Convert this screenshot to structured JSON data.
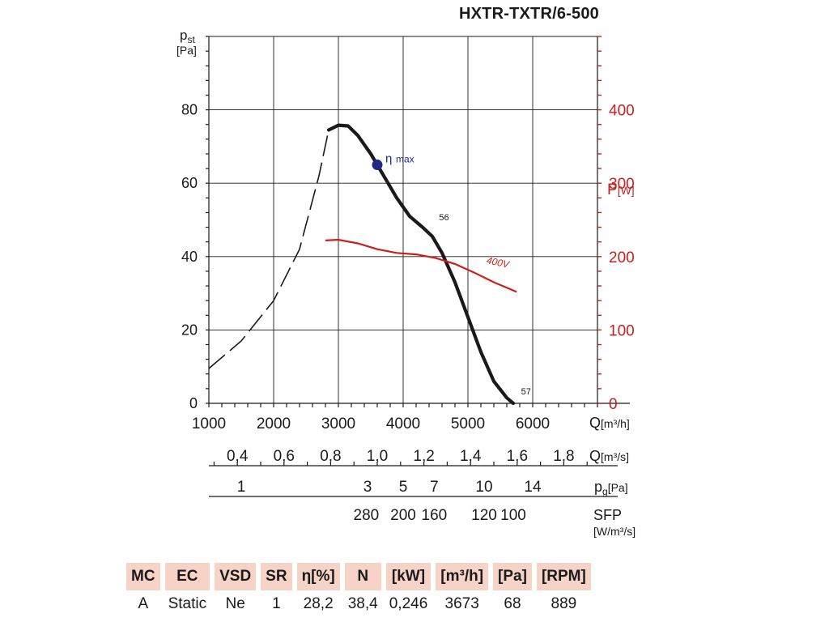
{
  "title": "HXTR-TXTR/6-500",
  "chart_data": {
    "type": "line",
    "x_axis": {
      "label_main": "Q",
      "label_unit": "[m³/h]",
      "range": [
        1000,
        7000
      ],
      "ticks": [
        1000,
        2000,
        3000,
        4000,
        5000,
        6000
      ]
    },
    "y_left": {
      "label_main": "p",
      "label_sub": "st",
      "label_unit": "[Pa]",
      "range": [
        0,
        100
      ],
      "ticks": [
        0,
        20,
        40,
        60,
        80
      ]
    },
    "y_right": {
      "label_main": "P",
      "label_unit": "[W]",
      "range": [
        0,
        500
      ],
      "ticks": [
        0,
        100,
        200,
        300,
        400
      ],
      "color": "#c8201e"
    },
    "grid": true,
    "series": [
      {
        "kind": "dashed",
        "color": "#1a1a1a",
        "x": [
          1000,
          1500,
          2000,
          2400,
          2700,
          2850
        ],
        "y": [
          9.5,
          17,
          28,
          42,
          62,
          74.5
        ]
      },
      {
        "kind": "solid",
        "color": "#1a1a1a",
        "x": [
          2850,
          3000,
          3150,
          3300,
          3500,
          3700,
          3900,
          4100,
          4300,
          4450,
          4600,
          4800,
          5000,
          5200,
          5400,
          5600,
          5700
        ],
        "y": [
          74.5,
          75.8,
          75.6,
          73,
          68,
          62,
          56,
          51,
          48,
          45.5,
          41,
          33,
          23.5,
          14,
          6,
          1.5,
          0
        ],
        "labels": [
          {
            "text": "56",
            "x": 4480,
            "y": 49
          },
          {
            "text": "57",
            "x": 5745,
            "y": 1.5
          }
        ]
      },
      {
        "kind": "power",
        "name": "400V",
        "color": "#c8201e",
        "axis": "right",
        "x": [
          2800,
          3000,
          3300,
          3600,
          3900,
          4200,
          4500,
          4800,
          5100,
          5400,
          5750
        ],
        "y": [
          222,
          223,
          218,
          210,
          205,
          203,
          198,
          190,
          178,
          165,
          152
        ],
        "label": {
          "text": "400V",
          "x": 5280,
          "y": 191
        }
      }
    ],
    "marker": {
      "x": 3600,
      "y": 65,
      "label_main": "η",
      "label_sub": "max",
      "color": "#202a86"
    },
    "scales": [
      {
        "unit_main": "Q",
        "unit": "[m³/s]",
        "range": [
          0.2778,
          1.9444
        ],
        "ticks": [
          0.4,
          0.6,
          0.8,
          1.0,
          1.2,
          1.4,
          1.6,
          1.8
        ],
        "labels": [
          "0,4",
          "0,6",
          "0,8",
          "1,0",
          "1,2",
          "1,4",
          "1,6",
          "1,8"
        ]
      },
      {
        "unit_main": "p",
        "unit_sub": "g",
        "unit": "[Pa]",
        "range": [
          1000,
          7000
        ],
        "ticks": [
          1500,
          3450,
          4000,
          4480,
          5250,
          6000
        ],
        "labels": [
          "1",
          "3",
          "5",
          "7",
          "10",
          "14"
        ]
      },
      {
        "unit_main": "SFP",
        "unit": "[W/m³/s]",
        "range": [
          1000,
          7000
        ],
        "ticks": [
          3430,
          4000,
          4480,
          5250,
          5700
        ],
        "labels": [
          "280",
          "200",
          "160",
          "120",
          "100"
        ]
      }
    ]
  },
  "table": {
    "headers": [
      "MC",
      "EC",
      "VSD",
      "SR",
      "η[%]",
      "N",
      "[kW]",
      "[m³/h]",
      "[Pa]",
      "[RPM]"
    ],
    "values": [
      "A",
      "Static",
      "Ne",
      "1",
      "28,2",
      "38,4",
      "0,246",
      "3673",
      "68",
      "889"
    ]
  }
}
